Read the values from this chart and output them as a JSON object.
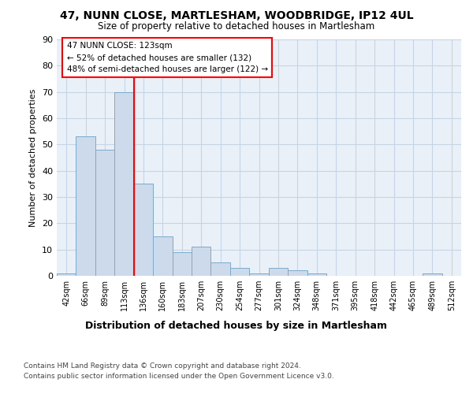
{
  "title1": "47, NUNN CLOSE, MARTLESHAM, WOODBRIDGE, IP12 4UL",
  "title2": "Size of property relative to detached houses in Martlesham",
  "xlabel": "Distribution of detached houses by size in Martlesham",
  "ylabel": "Number of detached properties",
  "footer1": "Contains HM Land Registry data © Crown copyright and database right 2024.",
  "footer2": "Contains public sector information licensed under the Open Government Licence v3.0.",
  "bar_labels": [
    "42sqm",
    "66sqm",
    "89sqm",
    "113sqm",
    "136sqm",
    "160sqm",
    "183sqm",
    "207sqm",
    "230sqm",
    "254sqm",
    "277sqm",
    "301sqm",
    "324sqm",
    "348sqm",
    "371sqm",
    "395sqm",
    "418sqm",
    "442sqm",
    "465sqm",
    "489sqm",
    "512sqm"
  ],
  "bar_values": [
    1,
    53,
    48,
    70,
    35,
    15,
    9,
    11,
    5,
    3,
    1,
    3,
    2,
    1,
    0,
    0,
    0,
    0,
    0,
    1,
    0
  ],
  "bar_color": "#ccdaeb",
  "bar_edge_color": "#7aaacb",
  "red_line_x": 3.5,
  "annotation_title": "47 NUNN CLOSE: 123sqm",
  "annotation_line1": "← 52% of detached houses are smaller (132)",
  "annotation_line2": "48% of semi-detached houses are larger (122) →",
  "ylim": [
    0,
    90
  ],
  "yticks": [
    0,
    10,
    20,
    30,
    40,
    50,
    60,
    70,
    80,
    90
  ],
  "bg_color": "#eaf0f8",
  "grid_color": "#c5d5e5"
}
